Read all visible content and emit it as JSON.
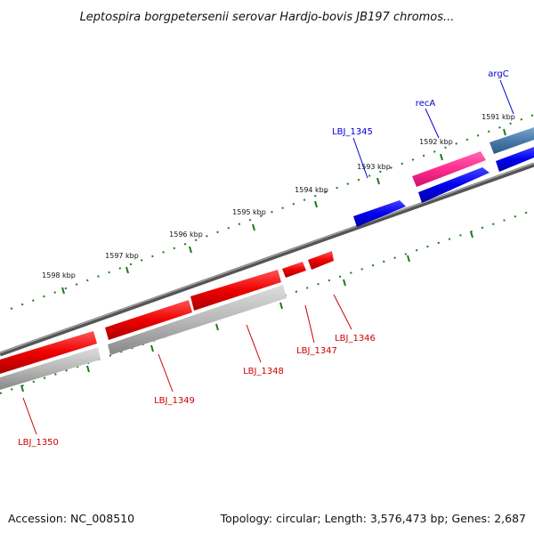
{
  "title": "Leptospira borgpetersenii serovar Hardjo-bovis JB197 chromos...",
  "footer": {
    "accession": "Accession: NC_008510",
    "summary": "Topology: circular; Length: 3,576,473 bp; Genes: 2,687"
  },
  "scale_labels": [
    "1591 kbp",
    "1592 kbp",
    "1593 kbp",
    "1594 kbp",
    "1595 kbp",
    "1596 kbp",
    "1597 kbp",
    "1598 kbp"
  ],
  "genes_forward": [
    "argC",
    "recA",
    "LBJ_1345"
  ],
  "genes_reverse": [
    "LBJ_1346",
    "LBJ_1347",
    "LBJ_1348",
    "LBJ_1349",
    "LBJ_1350"
  ],
  "colors": {
    "forward_cds": "#0000ee",
    "reverse_cds": "#ee0000",
    "highlight_pink": "#ff2d8f",
    "steel_blue": "#4a7aaa",
    "backbone": "#777777",
    "ticks": "#1a7a1a",
    "gray_feature": "#b8b8b8"
  }
}
